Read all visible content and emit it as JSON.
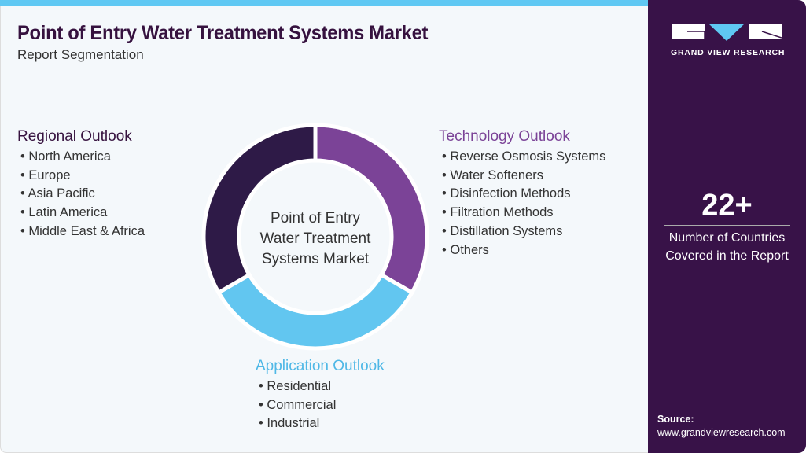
{
  "title": "Point of Entry Water Treatment Systems Market",
  "subtitle": "Report Segmentation",
  "regional": {
    "heading": "Regional Outlook",
    "items": [
      "North America",
      "Europe",
      "Asia Pacific",
      "Latin America",
      "Middle East & Africa"
    ]
  },
  "technology": {
    "heading": "Technology Outlook",
    "items": [
      "Reverse Osmosis Systems",
      "Water Softeners",
      "Disinfection Methods",
      "Filtration Methods",
      "Distillation Systems",
      "Others"
    ]
  },
  "application": {
    "heading": "Application Outlook",
    "items": [
      "Residential",
      "Commercial",
      "Industrial"
    ]
  },
  "center": {
    "line1": "Point of Entry",
    "line2": "Water Treatment",
    "line3": "Systems Market"
  },
  "brand": {
    "name": "GRAND VIEW RESEARCH"
  },
  "stat": {
    "value": "22+",
    "label1": "Number of Countries",
    "label2": "Covered in the Report"
  },
  "source": {
    "label": "Source:",
    "url": "www.grandviewresearch.com"
  },
  "colors": {
    "dark": "#2e1a47",
    "purple": "#7b4397",
    "blue": "#62c6f0",
    "heading_dark": "#36123f"
  }
}
